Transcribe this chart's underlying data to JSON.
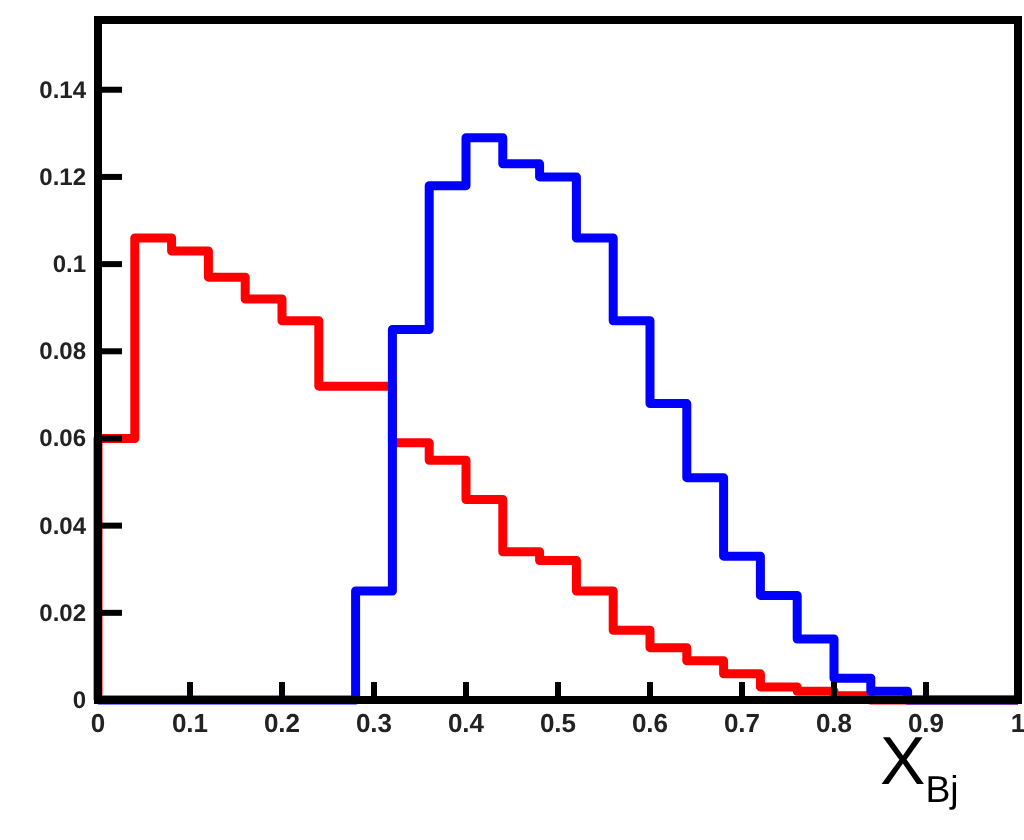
{
  "chart_data": {
    "type": "histogram",
    "xlabel": "X$_{Bj}$",
    "bins": [
      0,
      0.04,
      0.08,
      0.12,
      0.16,
      0.2,
      0.24,
      0.28,
      0.32,
      0.36,
      0.4,
      0.44,
      0.48,
      0.52,
      0.56,
      0.6,
      0.64,
      0.68,
      0.72,
      0.76,
      0.8,
      0.84,
      0.88,
      0.92,
      0.96,
      1
    ],
    "series": [
      {
        "color": "#ff0000",
        "values": [
          0.06,
          0.106,
          0.103,
          0.097,
          0.092,
          0.087,
          0.072,
          0.072,
          0.059,
          0.055,
          0.046,
          0.034,
          0.032,
          0.025,
          0.016,
          0.012,
          0.009,
          0.006,
          0.003,
          0.002,
          0.001,
          0,
          0,
          0,
          0
        ]
      },
      {
        "color": "#0000ff",
        "values": [
          0,
          0,
          0,
          0,
          0,
          0,
          0,
          0.025,
          0.085,
          0.118,
          0.129,
          0.123,
          0.12,
          0.106,
          0.087,
          0.068,
          0.051,
          0.033,
          0.024,
          0.014,
          0.005,
          0.002,
          0,
          0,
          0
        ]
      }
    ],
    "xlim": [
      0,
      1
    ],
    "ylim": [
      0,
      0.156
    ],
    "xticks": [
      0,
      0.1,
      0.2,
      0.3,
      0.4,
      0.5,
      0.6,
      0.7,
      0.8,
      0.9,
      1
    ],
    "yticks": [
      0,
      0.02,
      0.04,
      0.06,
      0.08,
      0.1,
      0.12,
      0.14
    ]
  }
}
